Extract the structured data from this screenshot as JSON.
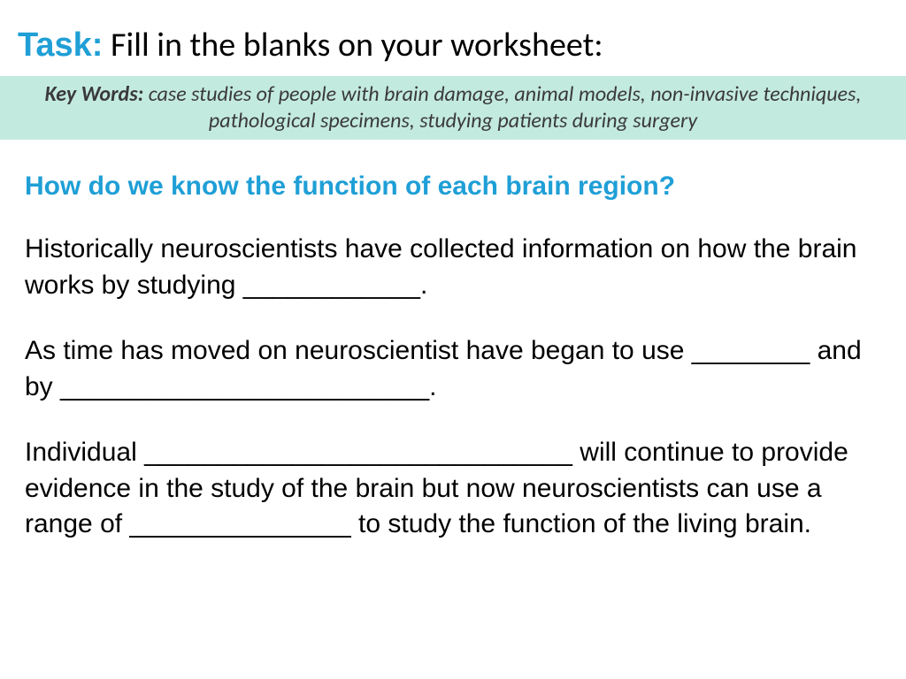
{
  "colors": {
    "accent_blue": "#1f9fd6",
    "keywords_bg": "#c3eadf",
    "text_black": "#000000",
    "text_gray": "#3a3a3a",
    "bg": "#ffffff"
  },
  "typography": {
    "header_fontsize": 38,
    "keywords_fontsize": 24,
    "body_fontsize": 30,
    "header_family": "Comic Sans MS",
    "task_text_family": "Calibri",
    "keywords_family": "Calibri",
    "body_family": "Comic Sans MS"
  },
  "header": {
    "task_label": "Task:",
    "task_text": " Fill in the blanks on your worksheet:"
  },
  "keywords": {
    "label": "Key Words: ",
    "text": "case studies of people with brain damage, animal models, non-invasive techniques, pathological specimens, studying patients during surgery"
  },
  "question": "How do we know the function of each brain region?",
  "paragraphs": {
    "p1": "Historically neuroscientists have collected information on how the brain works by studying ____________.",
    "p2": "As time has moved on neuroscientist have began to use ________  and by _________________________.",
    "p3": "Individual _____________________________ will continue to provide evidence in the study of the brain but now neuroscientists can use a range of _______________ to study the function of the living brain."
  }
}
